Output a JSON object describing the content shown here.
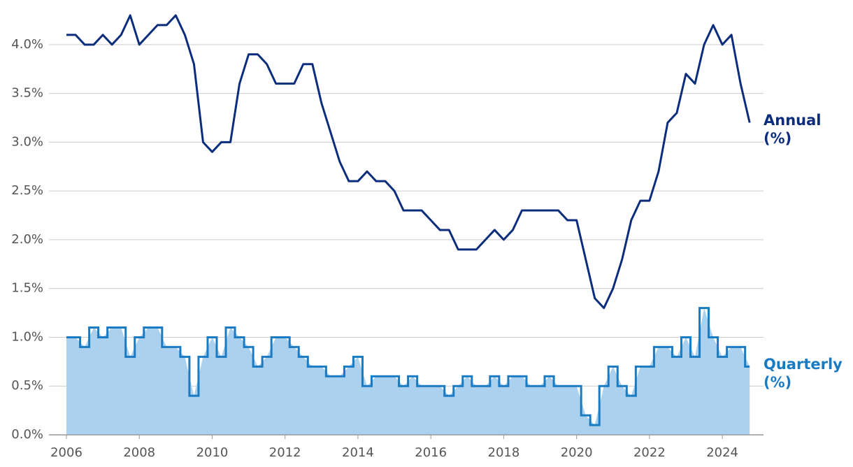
{
  "chart_data": {
    "type": "line",
    "x": [
      2006,
      2006.25,
      2006.5,
      2006.75,
      2007,
      2007.25,
      2007.5,
      2007.75,
      2008,
      2008.25,
      2008.5,
      2008.75,
      2009,
      2009.25,
      2009.5,
      2009.75,
      2010,
      2010.25,
      2010.5,
      2010.75,
      2011,
      2011.25,
      2011.5,
      2011.75,
      2012,
      2012.25,
      2012.5,
      2012.75,
      2013,
      2013.25,
      2013.5,
      2013.75,
      2014,
      2014.25,
      2014.5,
      2014.75,
      2015,
      2015.25,
      2015.5,
      2015.75,
      2016,
      2016.25,
      2016.5,
      2016.75,
      2017,
      2017.25,
      2017.5,
      2017.75,
      2018,
      2018.25,
      2018.5,
      2018.75,
      2019,
      2019.25,
      2019.5,
      2019.75,
      2020,
      2020.25,
      2020.5,
      2020.75,
      2021,
      2021.25,
      2021.5,
      2021.75,
      2022,
      2022.25,
      2022.5,
      2022.75,
      2023,
      2023.25,
      2023.5,
      2023.75,
      2024,
      2024.25,
      2024.5,
      2024.75
    ],
    "series": [
      {
        "name": "Annual (%)",
        "color": "#0b2d7c",
        "style": "line",
        "values": [
          4.1,
          4.1,
          4.0,
          4.0,
          4.1,
          4.0,
          4.1,
          4.3,
          4.0,
          4.1,
          4.2,
          4.2,
          4.3,
          4.1,
          3.8,
          3.0,
          2.9,
          3.0,
          3.0,
          3.6,
          3.9,
          3.9,
          3.8,
          3.6,
          3.6,
          3.6,
          3.8,
          3.8,
          3.4,
          3.1,
          2.8,
          2.6,
          2.6,
          2.7,
          2.6,
          2.6,
          2.5,
          2.3,
          2.3,
          2.3,
          2.2,
          2.1,
          2.1,
          1.9,
          1.9,
          1.9,
          2.0,
          2.1,
          2.0,
          2.1,
          2.3,
          2.3,
          2.3,
          2.3,
          2.3,
          2.2,
          2.2,
          1.8,
          1.4,
          1.3,
          1.5,
          1.8,
          2.2,
          2.4,
          2.4,
          2.7,
          3.2,
          3.3,
          3.7,
          3.6,
          4.0,
          4.2,
          4.0,
          4.1,
          3.6,
          3.2
        ]
      },
      {
        "name": "Quarterly (%)",
        "color": "#1a7ac2",
        "fill": "#abd1ee",
        "style": "step-area",
        "values": [
          1.0,
          1.0,
          0.9,
          1.1,
          1.0,
          1.1,
          1.1,
          0.8,
          1.0,
          1.1,
          1.1,
          0.9,
          0.9,
          0.8,
          0.4,
          0.8,
          1.0,
          0.8,
          1.1,
          1.0,
          0.9,
          0.7,
          0.8,
          1.0,
          1.0,
          0.9,
          0.8,
          0.7,
          0.7,
          0.6,
          0.6,
          0.7,
          0.8,
          0.5,
          0.6,
          0.6,
          0.6,
          0.5,
          0.6,
          0.5,
          0.5,
          0.5,
          0.4,
          0.5,
          0.6,
          0.5,
          0.5,
          0.6,
          0.5,
          0.6,
          0.6,
          0.5,
          0.5,
          0.6,
          0.5,
          0.5,
          0.5,
          0.2,
          0.1,
          0.5,
          0.7,
          0.5,
          0.4,
          0.7,
          0.7,
          0.9,
          0.9,
          0.8,
          1.0,
          0.8,
          1.3,
          1.0,
          0.8,
          0.9,
          0.9,
          0.7
        ]
      }
    ],
    "xlim": [
      2005.52,
      2025.13
    ],
    "xticks": [
      2006,
      2008,
      2010,
      2012,
      2014,
      2016,
      2018,
      2020,
      2022,
      2024
    ],
    "ylim": [
      0,
      4.4
    ],
    "yticks": [
      {
        "value": 0,
        "label": "0.0%"
      },
      {
        "value": 0.5,
        "label": "0.5%"
      },
      {
        "value": 1,
        "label": "1.0%"
      },
      {
        "value": 1.5,
        "label": "1.5%"
      },
      {
        "value": 2,
        "label": "2.0%"
      },
      {
        "value": 2.5,
        "label": "2.5%"
      },
      {
        "value": 3,
        "label": "3.0%"
      },
      {
        "value": 3.5,
        "label": "3.5%"
      },
      {
        "value": 4,
        "label": "4.0%"
      }
    ],
    "grid": true
  }
}
